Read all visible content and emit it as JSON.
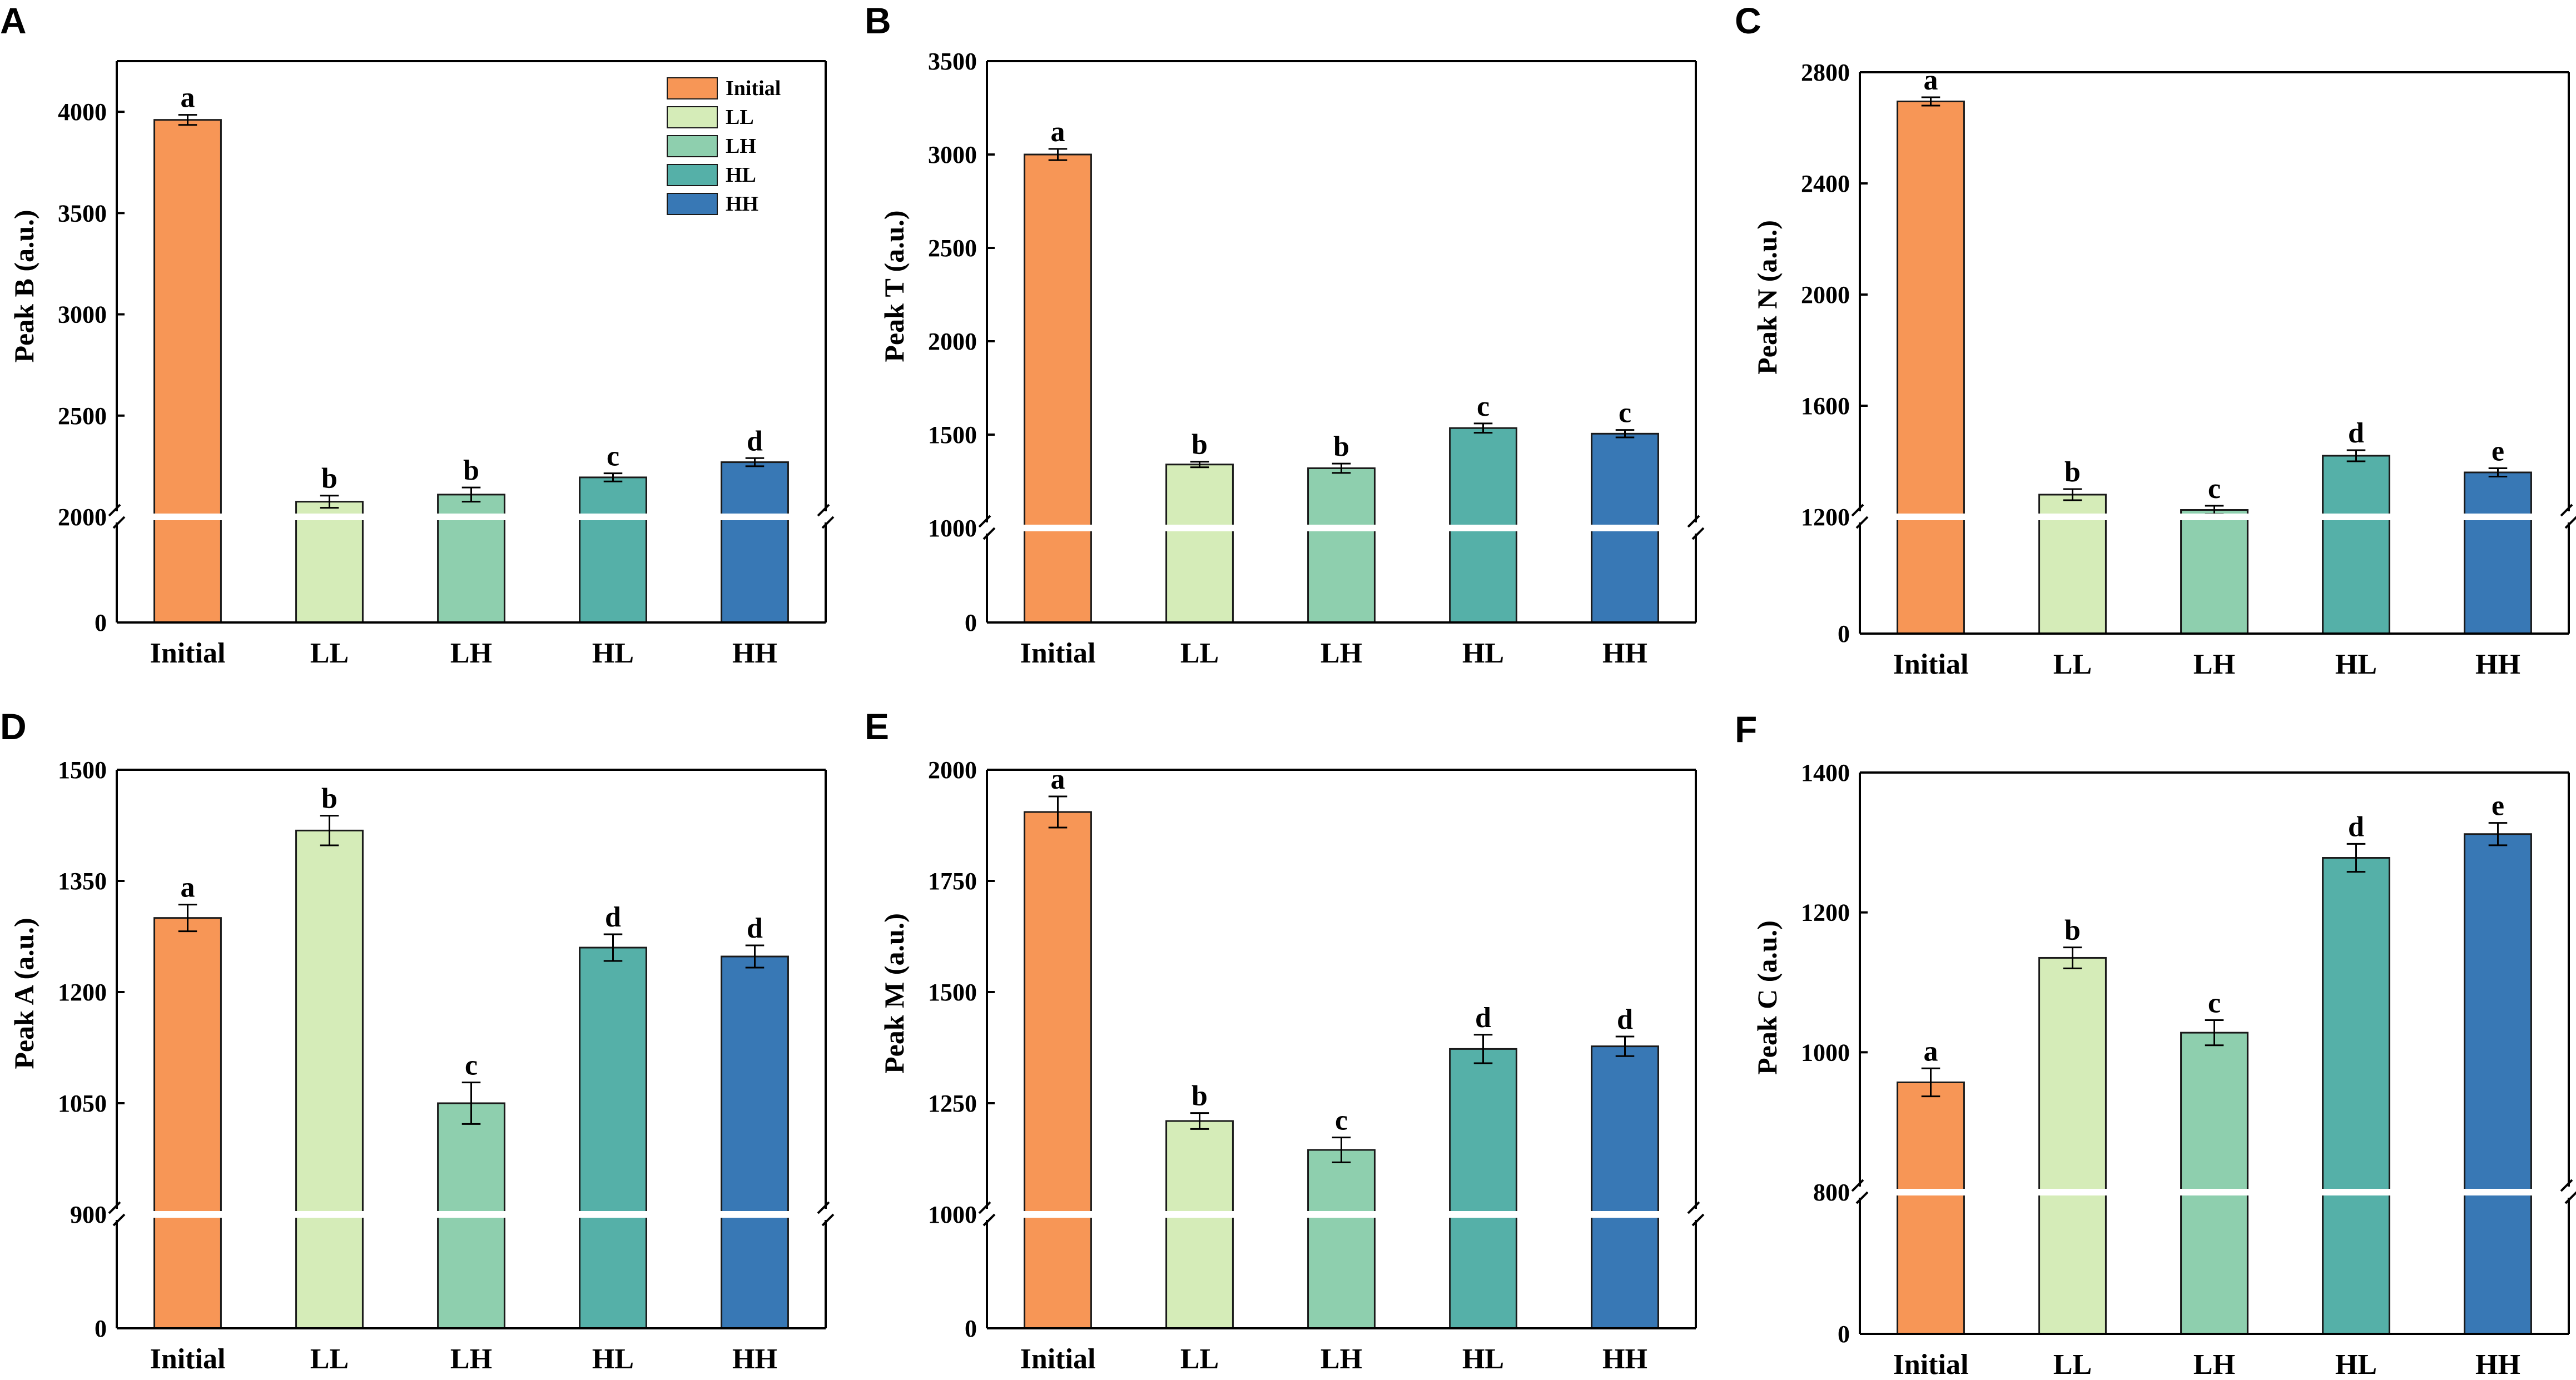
{
  "colors": {
    "Initial": "#F79656",
    "LL": "#D5ECB8",
    "LH": "#8ECFAE",
    "HL": "#55B0A8",
    "HH": "#3878B5"
  },
  "legend": [
    "Initial",
    "LL",
    "LH",
    "HL",
    "HH"
  ],
  "chart_data": [
    {
      "type": "bar",
      "panel": "A",
      "title": "",
      "ylabel": "Peak B (a.u.)",
      "categories": [
        "Initial",
        "LL",
        "LH",
        "HL",
        "HH"
      ],
      "values": [
        3960,
        2075,
        2110,
        2195,
        2270
      ],
      "errors": [
        25,
        30,
        35,
        20,
        20
      ],
      "letters": [
        "a",
        "b",
        "b",
        "c",
        "d"
      ],
      "ylim_lower": [
        0,
        2000
      ],
      "ylim_upper": [
        2000,
        4250
      ],
      "ticks_lower": [
        {
          "v": 0,
          "t": "0"
        }
      ],
      "ticks_upper": [
        {
          "v": 2000,
          "t": "2000"
        },
        {
          "v": 2500,
          "t": "2500"
        },
        {
          "v": 3000,
          "t": "3000"
        },
        {
          "v": 3500,
          "t": "3500"
        },
        {
          "v": 4000,
          "t": "4000"
        }
      ],
      "legend": "top-right"
    },
    {
      "type": "bar",
      "panel": "B",
      "title": "",
      "ylabel": "Peak T (a.u.)",
      "categories": [
        "Initial",
        "LL",
        "LH",
        "HL",
        "HH"
      ],
      "values": [
        3000,
        1340,
        1320,
        1535,
        1505
      ],
      "errors": [
        30,
        15,
        25,
        25,
        20
      ],
      "letters": [
        "a",
        "b",
        "b",
        "c",
        "c"
      ],
      "ylim_lower": [
        0,
        1000
      ],
      "ylim_upper": [
        1000,
        3500
      ],
      "ticks_lower": [
        {
          "v": 0,
          "t": "0"
        }
      ],
      "ticks_upper": [
        {
          "v": 1000,
          "t": "1000"
        },
        {
          "v": 1500,
          "t": "1500"
        },
        {
          "v": 2000,
          "t": "2000"
        },
        {
          "v": 2500,
          "t": "2500"
        },
        {
          "v": 3000,
          "t": "3000"
        },
        {
          "v": 3500,
          "t": "3500"
        }
      ]
    },
    {
      "type": "bar",
      "panel": "C",
      "title": "",
      "ylabel": "Peak N (a.u.)",
      "categories": [
        "Initial",
        "LL",
        "LH",
        "HL",
        "HH"
      ],
      "values": [
        2695,
        1280,
        1225,
        1420,
        1360
      ],
      "errors": [
        15,
        20,
        15,
        20,
        15
      ],
      "letters": [
        "a",
        "b",
        "c",
        "d",
        "e"
      ],
      "ylim_lower": [
        0,
        1200
      ],
      "ylim_upper": [
        1200,
        2800
      ],
      "ticks_lower": [
        {
          "v": 0,
          "t": "0"
        }
      ],
      "ticks_upper": [
        {
          "v": 1200,
          "t": "1200"
        },
        {
          "v": 1600,
          "t": "1600"
        },
        {
          "v": 2000,
          "t": "2000"
        },
        {
          "v": 2400,
          "t": "2400"
        },
        {
          "v": 2800,
          "t": "2800"
        }
      ]
    },
    {
      "type": "bar",
      "panel": "D",
      "title": "",
      "ylabel": "Peak A (a.u.)",
      "categories": [
        "Initial",
        "LL",
        "LH",
        "HL",
        "HH"
      ],
      "values": [
        1300,
        1418,
        1050,
        1260,
        1248
      ],
      "errors": [
        18,
        20,
        28,
        18,
        15
      ],
      "letters": [
        "a",
        "b",
        "c",
        "d",
        "d"
      ],
      "ylim_lower": [
        0,
        900
      ],
      "ylim_upper": [
        900,
        1500
      ],
      "ticks_lower": [
        {
          "v": 0,
          "t": "0"
        }
      ],
      "ticks_upper": [
        {
          "v": 900,
          "t": "900"
        },
        {
          "v": 1050,
          "t": "1050"
        },
        {
          "v": 1200,
          "t": "1200"
        },
        {
          "v": 1350,
          "t": "1350"
        },
        {
          "v": 1500,
          "t": "1500"
        }
      ]
    },
    {
      "type": "bar",
      "panel": "E",
      "title": "",
      "ylabel": "Peak M (a.u.)",
      "categories": [
        "Initial",
        "LL",
        "LH",
        "HL",
        "HH"
      ],
      "values": [
        1905,
        1210,
        1145,
        1372,
        1378
      ],
      "errors": [
        35,
        18,
        28,
        32,
        22
      ],
      "letters": [
        "a",
        "b",
        "c",
        "d",
        "d"
      ],
      "ylim_lower": [
        0,
        1000
      ],
      "ylim_upper": [
        1000,
        2000
      ],
      "ticks_lower": [
        {
          "v": 0,
          "t": "0"
        }
      ],
      "ticks_upper": [
        {
          "v": 1000,
          "t": "1000"
        },
        {
          "v": 1250,
          "t": "1250"
        },
        {
          "v": 1500,
          "t": "1500"
        },
        {
          "v": 1750,
          "t": "1750"
        },
        {
          "v": 2000,
          "t": "2000"
        }
      ]
    },
    {
      "type": "bar",
      "panel": "F",
      "title": "",
      "ylabel": "Peak C (a.u.)",
      "categories": [
        "Initial",
        "LL",
        "LH",
        "HL",
        "HH"
      ],
      "values": [
        957,
        1135,
        1028,
        1278,
        1312
      ],
      "errors": [
        20,
        15,
        18,
        20,
        16
      ],
      "letters": [
        "a",
        "b",
        "c",
        "d",
        "e"
      ],
      "ylim_lower": [
        0,
        800
      ],
      "ylim_upper": [
        800,
        1400
      ],
      "ticks_lower": [
        {
          "v": 0,
          "t": "0"
        }
      ],
      "ticks_upper": [
        {
          "v": 800,
          "t": "800"
        },
        {
          "v": 1000,
          "t": "1000"
        },
        {
          "v": 1200,
          "t": "1200"
        },
        {
          "v": 1400,
          "t": "1400"
        }
      ]
    }
  ]
}
